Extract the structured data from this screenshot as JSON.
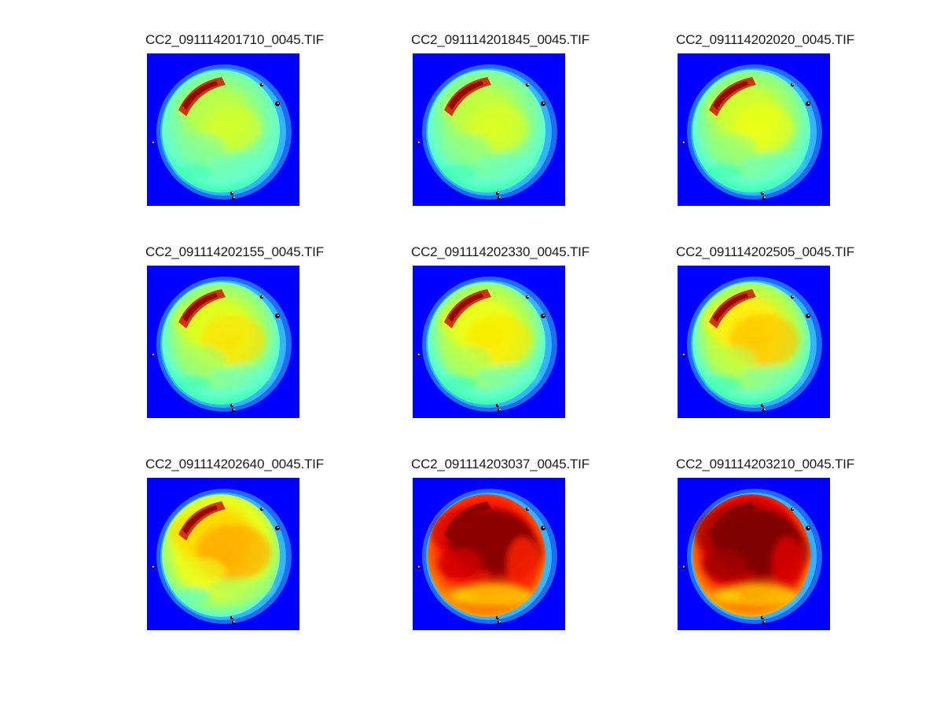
{
  "figure": {
    "background": "#ffffff",
    "panel_background": "#0000ff",
    "colormap": "jet"
  },
  "panels": [
    {
      "title": "CC2_091114201710_0045.TIF",
      "palette": [
        "#00ff66",
        "#3affb0",
        "#66ffcc",
        "#7fffa0",
        "#b8ff4a",
        "#d8ff2a"
      ],
      "heat": 0.1
    },
    {
      "title": "CC2_091114201845_0045.TIF",
      "palette": [
        "#00ff66",
        "#3affb0",
        "#66ffcc",
        "#88ff90",
        "#c0ff40",
        "#e0ff20"
      ],
      "heat": 0.15
    },
    {
      "title": "CC2_091114202020_0045.TIF",
      "palette": [
        "#00ff66",
        "#3affb0",
        "#66ffcc",
        "#90ff80",
        "#d0ff30",
        "#f0ff10"
      ],
      "heat": 0.2
    },
    {
      "title": "CC2_091114202155_0045.TIF",
      "palette": [
        "#00ff66",
        "#3affb0",
        "#66ffcc",
        "#9dff70",
        "#e0ff20",
        "#ffe000"
      ],
      "heat": 0.3
    },
    {
      "title": "CC2_091114202330_0045.TIF",
      "palette": [
        "#00ff66",
        "#3affb0",
        "#66ffcc",
        "#a8ff60",
        "#eaff18",
        "#ffe800"
      ],
      "heat": 0.33
    },
    {
      "title": "CC2_091114202505_0045.TIF",
      "palette": [
        "#00ff66",
        "#3affb0",
        "#6effc0",
        "#b4ff50",
        "#ffef10",
        "#ffc000"
      ],
      "heat": 0.4
    },
    {
      "title": "CC2_091114202640_0045.TIF",
      "palette": [
        "#00ff66",
        "#5cffd0",
        "#9dff70",
        "#e8ff20",
        "#ffd800",
        "#ffa000"
      ],
      "heat": 0.55
    },
    {
      "title": "CC2_091114203037_0045.TIF",
      "palette": [
        "#ffe000",
        "#ffa000",
        "#ff6000",
        "#ff2000",
        "#d00000",
        "#8b0000"
      ],
      "heat": 0.85
    },
    {
      "title": "CC2_091114203210_0045.TIF",
      "palette": [
        "#ffe000",
        "#ffb000",
        "#ff6000",
        "#e00000",
        "#a00000",
        "#800000"
      ],
      "heat": 0.95
    }
  ]
}
